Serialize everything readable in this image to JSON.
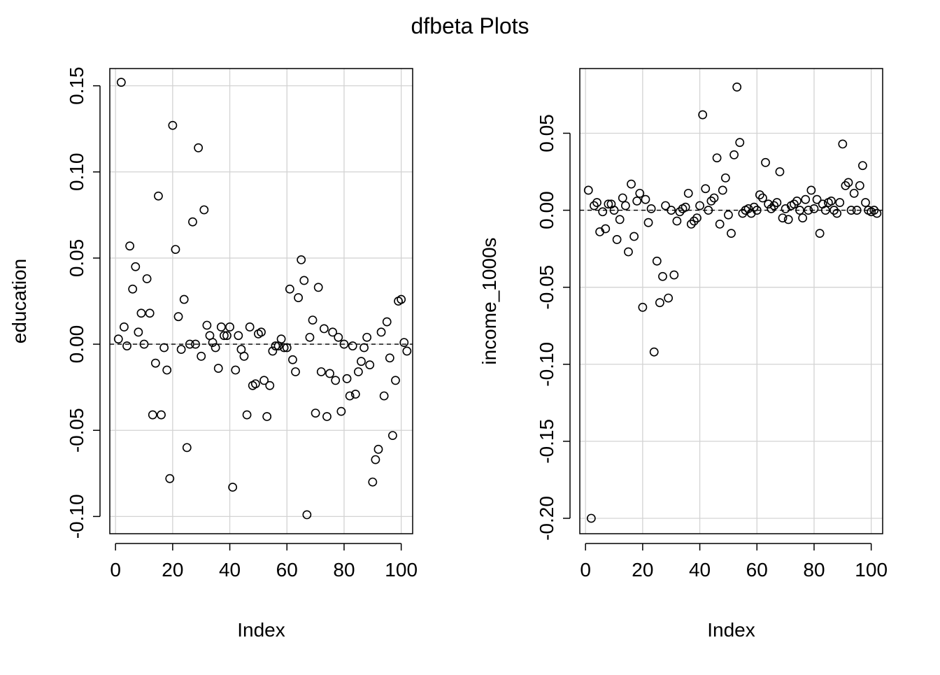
{
  "title": "dfbeta Plots",
  "colors": {
    "grid": "#d3d3d3",
    "points": "#000000",
    "reference_line": "#000000",
    "background": "#ffffff"
  },
  "chart_data": [
    {
      "type": "scatter",
      "xlabel": "Index",
      "ylabel": "education",
      "xlim": [
        -2,
        104
      ],
      "ylim": [
        -0.11,
        0.16
      ],
      "x_ticks": [
        0,
        20,
        40,
        60,
        80,
        100
      ],
      "y_ticks": [
        -0.1,
        -0.05,
        0.0,
        0.05,
        0.1,
        0.15
      ],
      "y_tick_labels": [
        "-0.10",
        "-0.05",
        "0.00",
        "0.05",
        "0.10",
        "0.15"
      ],
      "grid": true,
      "reference_line_y": 0,
      "x": [
        1,
        2,
        3,
        4,
        5,
        6,
        7,
        8,
        9,
        10,
        11,
        12,
        13,
        14,
        15,
        16,
        17,
        18,
        19,
        20,
        21,
        22,
        23,
        24,
        25,
        26,
        27,
        28,
        29,
        30,
        31,
        32,
        33,
        34,
        35,
        36,
        37,
        38,
        39,
        40,
        41,
        42,
        43,
        44,
        45,
        46,
        47,
        48,
        49,
        50,
        51,
        52,
        53,
        54,
        55,
        56,
        57,
        58,
        59,
        60,
        61,
        62,
        63,
        64,
        65,
        66,
        67,
        68,
        69,
        70,
        71,
        72,
        73,
        74,
        75,
        76,
        77,
        78,
        79,
        80,
        81,
        82,
        83,
        84,
        85,
        86,
        87,
        88,
        89,
        90,
        91,
        92,
        93,
        94,
        95,
        96,
        97,
        98,
        99,
        100,
        101,
        102
      ],
      "y": [
        0.003,
        0.152,
        0.01,
        -0.001,
        0.057,
        0.032,
        0.045,
        0.007,
        0.018,
        0.0,
        0.038,
        0.018,
        -0.041,
        -0.011,
        0.086,
        -0.041,
        -0.002,
        -0.015,
        -0.078,
        0.127,
        0.055,
        0.016,
        -0.003,
        0.026,
        -0.06,
        0.0,
        0.071,
        0.0,
        0.114,
        -0.007,
        0.078,
        0.011,
        0.005,
        0.001,
        -0.002,
        -0.014,
        0.01,
        0.005,
        0.005,
        0.01,
        -0.083,
        -0.015,
        0.005,
        -0.003,
        -0.007,
        -0.041,
        0.01,
        -0.024,
        -0.023,
        0.006,
        0.007,
        -0.021,
        -0.042,
        -0.024,
        -0.004,
        -0.001,
        -0.001,
        0.003,
        -0.002,
        -0.002,
        0.032,
        -0.009,
        -0.016,
        0.027,
        0.049,
        0.037,
        -0.099,
        0.004,
        0.014,
        -0.04,
        0.033,
        -0.016,
        0.009,
        -0.042,
        -0.017,
        0.007,
        -0.021,
        0.004,
        -0.039,
        0.0,
        -0.02,
        -0.03,
        -0.001,
        -0.029,
        -0.016,
        -0.01,
        -0.002,
        0.004,
        -0.012,
        -0.08,
        -0.067,
        -0.061,
        0.007,
        -0.03,
        0.013,
        -0.008,
        -0.053,
        -0.021,
        0.025,
        0.026,
        0.001,
        -0.004
      ]
    },
    {
      "type": "scatter",
      "xlabel": "Index",
      "ylabel": "income_1000s",
      "xlim": [
        -2,
        104
      ],
      "ylim": [
        -0.21,
        0.092
      ],
      "x_ticks": [
        0,
        20,
        40,
        60,
        80,
        100
      ],
      "y_ticks": [
        -0.2,
        -0.15,
        -0.1,
        -0.05,
        0.0,
        0.05
      ],
      "y_tick_labels": [
        "-0.20",
        "-0.15",
        "-0.10",
        "-0.05",
        "0.00",
        "0.05"
      ],
      "grid": true,
      "reference_line_y": 0,
      "x": [
        1,
        2,
        3,
        4,
        5,
        6,
        7,
        8,
        9,
        10,
        11,
        12,
        13,
        14,
        15,
        16,
        17,
        18,
        19,
        20,
        21,
        22,
        23,
        24,
        25,
        26,
        27,
        28,
        29,
        30,
        31,
        32,
        33,
        34,
        35,
        36,
        37,
        38,
        39,
        40,
        41,
        42,
        43,
        44,
        45,
        46,
        47,
        48,
        49,
        50,
        51,
        52,
        53,
        54,
        55,
        56,
        57,
        58,
        59,
        60,
        61,
        62,
        63,
        64,
        65,
        66,
        67,
        68,
        69,
        70,
        71,
        72,
        73,
        74,
        75,
        76,
        77,
        78,
        79,
        80,
        81,
        82,
        83,
        84,
        85,
        86,
        87,
        88,
        89,
        90,
        91,
        92,
        93,
        94,
        95,
        96,
        97,
        98,
        99,
        100,
        101,
        102
      ],
      "y": [
        0.013,
        -0.2,
        0.003,
        0.005,
        -0.014,
        -0.001,
        -0.012,
        0.004,
        0.004,
        0.0,
        -0.019,
        -0.006,
        0.008,
        0.003,
        -0.027,
        0.017,
        -0.017,
        0.006,
        0.011,
        -0.063,
        0.007,
        -0.008,
        0.001,
        -0.092,
        -0.033,
        -0.06,
        -0.043,
        0.003,
        -0.057,
        0.0,
        -0.042,
        -0.007,
        -0.001,
        0.001,
        0.002,
        0.011,
        -0.009,
        -0.007,
        -0.005,
        0.003,
        0.062,
        0.014,
        0.0,
        0.006,
        0.008,
        0.034,
        -0.009,
        0.013,
        0.021,
        -0.003,
        -0.015,
        0.036,
        0.08,
        0.044,
        -0.002,
        0.0,
        0.001,
        -0.002,
        0.002,
        0.0,
        0.01,
        0.008,
        0.031,
        0.004,
        0.001,
        0.003,
        0.005,
        0.025,
        -0.005,
        0.001,
        -0.006,
        0.003,
        0.004,
        0.006,
        0.0,
        -0.005,
        0.007,
        0.0,
        0.013,
        0.001,
        0.007,
        -0.015,
        0.004,
        0.0,
        0.005,
        0.006,
        0.0,
        -0.002,
        0.005,
        0.043,
        0.016,
        0.018,
        0.0,
        0.011,
        0.0,
        0.016,
        0.029,
        0.005,
        0.0,
        -0.001,
        0.0,
        -0.002
      ]
    }
  ]
}
